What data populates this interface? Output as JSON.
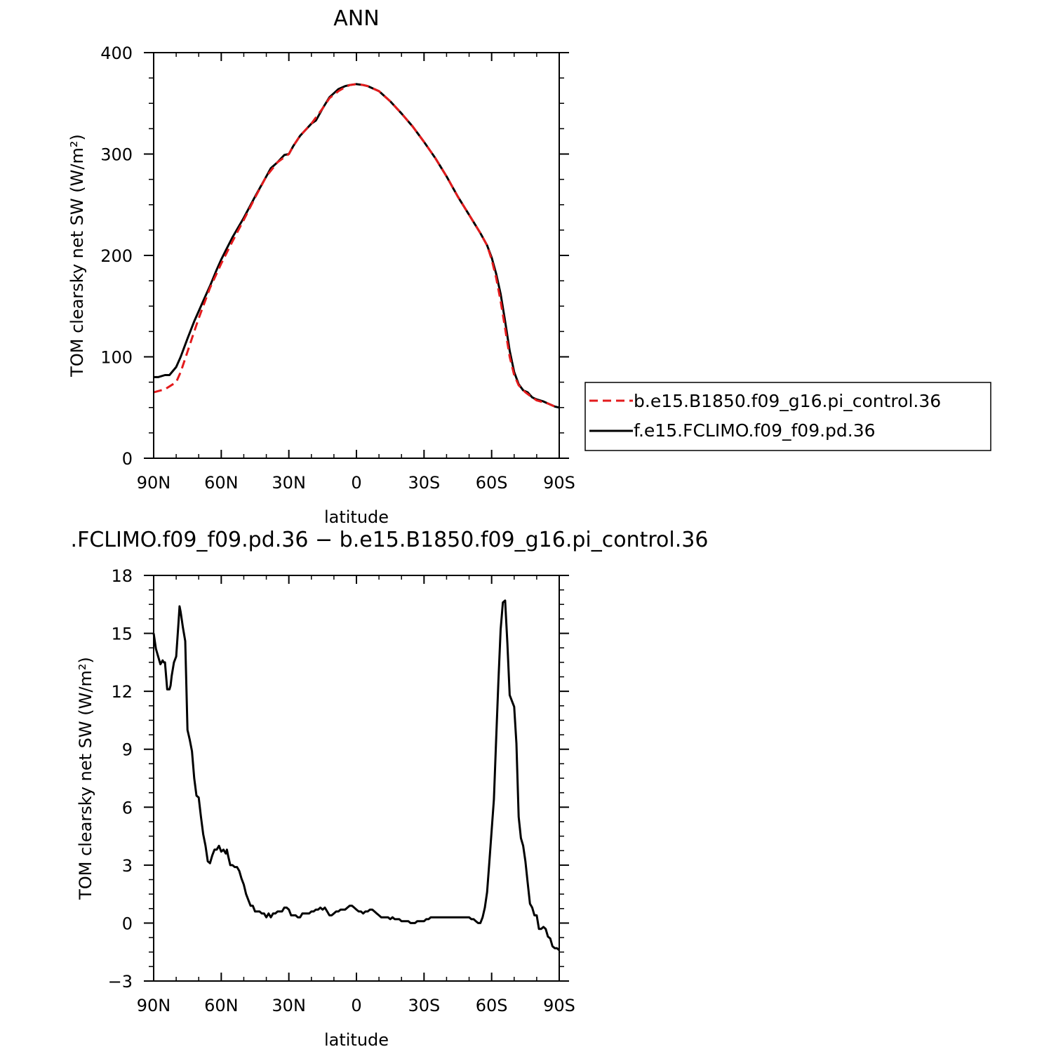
{
  "chart_data": [
    {
      "type": "line",
      "title": "ANN",
      "xlabel": "latitude",
      "ylabel": "TOM clearsky net SW (W/m²)",
      "x_direction": "north-to-south",
      "xlim": [
        90,
        -90
      ],
      "ylim": [
        0,
        400
      ],
      "x_ticks": [
        {
          "value": 90,
          "label": "90N"
        },
        {
          "value": 60,
          "label": "60N"
        },
        {
          "value": 30,
          "label": "30N"
        },
        {
          "value": 0,
          "label": "0"
        },
        {
          "value": -30,
          "label": "30S"
        },
        {
          "value": -60,
          "label": "60S"
        },
        {
          "value": -90,
          "label": "90S"
        }
      ],
      "y_ticks": [
        0,
        100,
        200,
        300,
        400
      ],
      "grid": false,
      "legend_position": "right",
      "series": [
        {
          "name": "b.e15.B1850.f09_g16.pi_control.36",
          "color": "#e31a1c",
          "style": "dashed",
          "x": [
            90,
            85,
            80,
            78,
            75,
            72,
            70,
            68,
            65,
            60,
            55,
            50,
            45,
            40,
            35,
            30,
            28,
            25,
            20,
            15,
            12,
            8,
            5,
            3,
            0,
            -3,
            -5,
            -10,
            -15,
            -20,
            -25,
            -30,
            -35,
            -40,
            -45,
            -50,
            -55,
            -58,
            -60,
            -62,
            -64,
            -66,
            -68,
            -70,
            -72,
            -75,
            -78,
            -80,
            -85,
            -88,
            -90
          ],
          "y": [
            65,
            68,
            75,
            85,
            105,
            125,
            138,
            150,
            168,
            192,
            214,
            235,
            257,
            278,
            292,
            300,
            308,
            318,
            330,
            345,
            355,
            362,
            366,
            368,
            369,
            368,
            367,
            362,
            352,
            340,
            327,
            312,
            296,
            278,
            258,
            240,
            222,
            210,
            196,
            178,
            155,
            128,
            100,
            82,
            72,
            65,
            60,
            57,
            54,
            51,
            50
          ]
        },
        {
          "name": "f.e15.FCLIMO.f09_f09.pd.36",
          "color": "#000000",
          "style": "solid",
          "x": [
            90,
            88,
            85,
            83,
            80,
            78,
            75,
            72,
            70,
            68,
            65,
            62,
            60,
            58,
            55,
            50,
            45,
            40,
            38,
            35,
            32,
            30,
            28,
            25,
            20,
            18,
            15,
            12,
            10,
            8,
            5,
            3,
            0,
            -3,
            -5,
            -10,
            -15,
            -20,
            -25,
            -30,
            -35,
            -40,
            -45,
            -50,
            -55,
            -58,
            -60,
            -62,
            -64,
            -66,
            -68,
            -70,
            -72,
            -74,
            -76,
            -78,
            -80,
            -83,
            -85,
            -88,
            -90
          ],
          "y": [
            80,
            80,
            82,
            82,
            90,
            100,
            118,
            135,
            145,
            155,
            170,
            186,
            196,
            205,
            218,
            237,
            258,
            278,
            286,
            292,
            299,
            300,
            308,
            318,
            330,
            333,
            345,
            356,
            360,
            364,
            367,
            368,
            369,
            368,
            367,
            362,
            352,
            340,
            327,
            312,
            296,
            278,
            258,
            240,
            222,
            210,
            198,
            182,
            162,
            135,
            106,
            85,
            73,
            67,
            65,
            60,
            58,
            56,
            54,
            51,
            50
          ]
        }
      ]
    },
    {
      "type": "line",
      "title": ".FCLIMO.f09_f09.pd.36 − b.e15.B1850.f09_g16.pi_control.36",
      "xlabel": "latitude",
      "ylabel": "TOM clearsky net SW (W/m²)",
      "x_direction": "north-to-south",
      "xlim": [
        90,
        -90
      ],
      "ylim": [
        -3,
        18
      ],
      "x_ticks": [
        {
          "value": 90,
          "label": "90N"
        },
        {
          "value": 60,
          "label": "60N"
        },
        {
          "value": 30,
          "label": "30N"
        },
        {
          "value": 0,
          "label": "0"
        },
        {
          "value": -30,
          "label": "30S"
        },
        {
          "value": -60,
          "label": "60S"
        },
        {
          "value": -90,
          "label": "90S"
        }
      ],
      "y_ticks": [
        {
          "value": -3,
          "label": "−3"
        },
        {
          "value": 0,
          "label": "0"
        },
        {
          "value": 3,
          "label": "3"
        },
        {
          "value": 6,
          "label": "6"
        },
        {
          "value": 9,
          "label": "9"
        },
        {
          "value": 12,
          "label": "12"
        },
        {
          "value": 15,
          "label": "15"
        },
        {
          "value": 18,
          "label": "18"
        }
      ],
      "grid": false,
      "series": [
        {
          "color": "#000000",
          "style": "solid",
          "x": [
            90,
            89,
            88,
            87,
            86,
            85.5,
            85,
            84,
            83,
            82.5,
            82,
            81,
            80,
            79,
            78.5,
            78,
            77,
            76,
            75,
            74,
            73,
            72,
            71,
            70,
            69.5,
            69,
            68,
            67,
            66,
            65,
            64,
            63,
            62,
            61,
            60,
            59,
            58,
            57.5,
            57,
            56,
            55,
            54,
            53,
            52,
            51,
            50,
            49,
            48,
            47,
            46,
            45,
            44,
            43,
            42,
            41,
            40,
            39,
            38,
            37,
            36,
            35,
            34,
            33,
            32,
            31,
            30,
            29,
            28,
            27,
            26,
            25,
            24,
            23,
            22,
            21,
            20,
            19,
            18,
            17,
            16,
            15,
            14,
            13,
            12,
            11,
            10,
            9,
            8,
            7,
            6,
            5,
            4,
            3,
            2,
            1,
            0,
            -1,
            -2,
            -3,
            -4,
            -5,
            -6,
            -7,
            -8,
            -9,
            -10,
            -11,
            -12,
            -13,
            -14,
            -15,
            -16,
            -17,
            -18,
            -19,
            -20,
            -21,
            -22,
            -23,
            -24,
            -25,
            -26,
            -27,
            -28,
            -29,
            -30,
            -31,
            -32,
            -33,
            -34,
            -35,
            -37,
            -40,
            -43,
            -46,
            -48,
            -50,
            -51,
            -52,
            -53,
            -54,
            -55,
            -56,
            -57,
            -58,
            -59,
            -60,
            -61,
            -62,
            -63,
            -64,
            -65,
            -66,
            -67,
            -68,
            -69,
            -70,
            -71,
            -72,
            -73,
            -74,
            -75,
            -76,
            -77,
            -78,
            -79,
            -80,
            -81,
            -82,
            -83,
            -84,
            -85,
            -86,
            -87,
            -88,
            -89,
            -90
          ],
          "y": [
            15.0,
            14.2,
            13.8,
            13.4,
            13.6,
            13.5,
            13.5,
            12.1,
            12.1,
            12.3,
            12.8,
            13.5,
            13.8,
            15.5,
            16.4,
            16.1,
            15.3,
            14.6,
            10.0,
            9.5,
            8.9,
            7.5,
            6.6,
            6.5,
            6.0,
            5.5,
            4.6,
            4.0,
            3.2,
            3.1,
            3.5,
            3.8,
            3.8,
            4.0,
            3.7,
            3.8,
            3.6,
            3.8,
            3.5,
            3.0,
            3.0,
            2.9,
            2.9,
            2.7,
            2.3,
            2.0,
            1.5,
            1.2,
            0.9,
            0.9,
            0.6,
            0.6,
            0.6,
            0.5,
            0.5,
            0.3,
            0.5,
            0.3,
            0.5,
            0.5,
            0.6,
            0.6,
            0.6,
            0.8,
            0.8,
            0.7,
            0.4,
            0.4,
            0.4,
            0.3,
            0.3,
            0.5,
            0.5,
            0.5,
            0.5,
            0.6,
            0.6,
            0.7,
            0.7,
            0.8,
            0.7,
            0.8,
            0.6,
            0.4,
            0.4,
            0.5,
            0.6,
            0.6,
            0.7,
            0.7,
            0.7,
            0.8,
            0.9,
            0.9,
            0.8,
            0.7,
            0.6,
            0.6,
            0.5,
            0.6,
            0.6,
            0.7,
            0.7,
            0.6,
            0.5,
            0.4,
            0.3,
            0.3,
            0.3,
            0.3,
            0.2,
            0.3,
            0.2,
            0.2,
            0.2,
            0.1,
            0.1,
            0.1,
            0.1,
            0.0,
            0.0,
            0.0,
            0.1,
            0.1,
            0.1,
            0.1,
            0.2,
            0.2,
            0.3,
            0.3,
            0.3,
            0.3,
            0.3,
            0.3,
            0.3,
            0.3,
            0.3,
            0.2,
            0.2,
            0.1,
            0.0,
            0.0,
            0.3,
            0.8,
            1.6,
            3.2,
            4.8,
            6.4,
            9.5,
            12.5,
            15.2,
            16.6,
            16.7,
            14.5,
            11.8,
            11.5,
            11.2,
            9.3,
            5.5,
            4.4,
            4.0,
            3.2,
            2.1,
            1.0,
            0.8,
            0.4,
            0.4,
            -0.3,
            -0.3,
            -0.2,
            -0.3,
            -0.7,
            -0.8,
            -1.2,
            -1.3,
            -1.3,
            -1.4
          ]
        }
      ]
    }
  ]
}
